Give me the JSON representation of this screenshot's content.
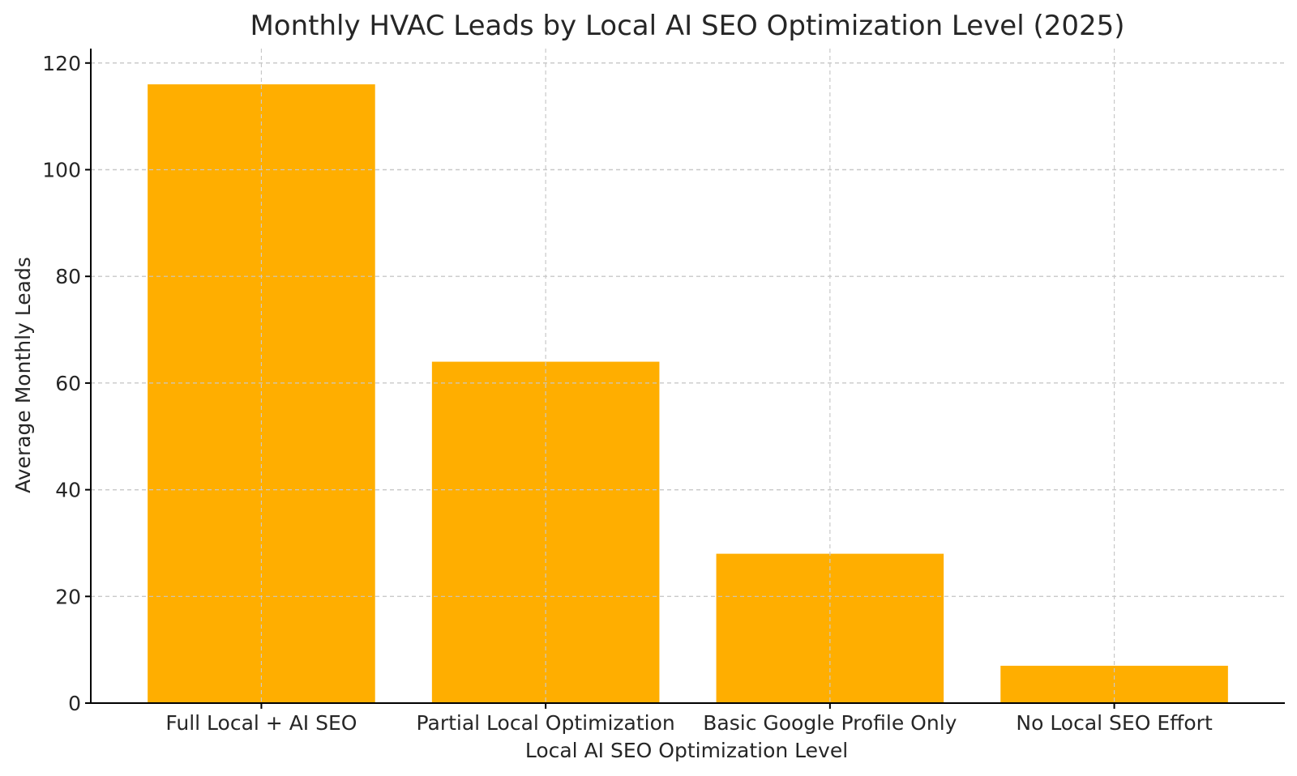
{
  "chart_data": {
    "type": "bar",
    "title": "Monthly HVAC Leads by Local AI SEO Optimization Level (2025)",
    "xlabel": "Local AI SEO Optimization Level",
    "ylabel": "Average Monthly Leads",
    "categories": [
      "Full Local + AI SEO",
      "Partial Local Optimization",
      "Basic Google Profile Only",
      "No Local SEO Effort"
    ],
    "values": [
      116,
      64,
      28,
      7
    ],
    "ylim": [
      0,
      120
    ],
    "yticks": [
      0,
      20,
      40,
      60,
      80,
      100,
      120
    ],
    "grid": true,
    "bar_color": "#FFAE00"
  }
}
